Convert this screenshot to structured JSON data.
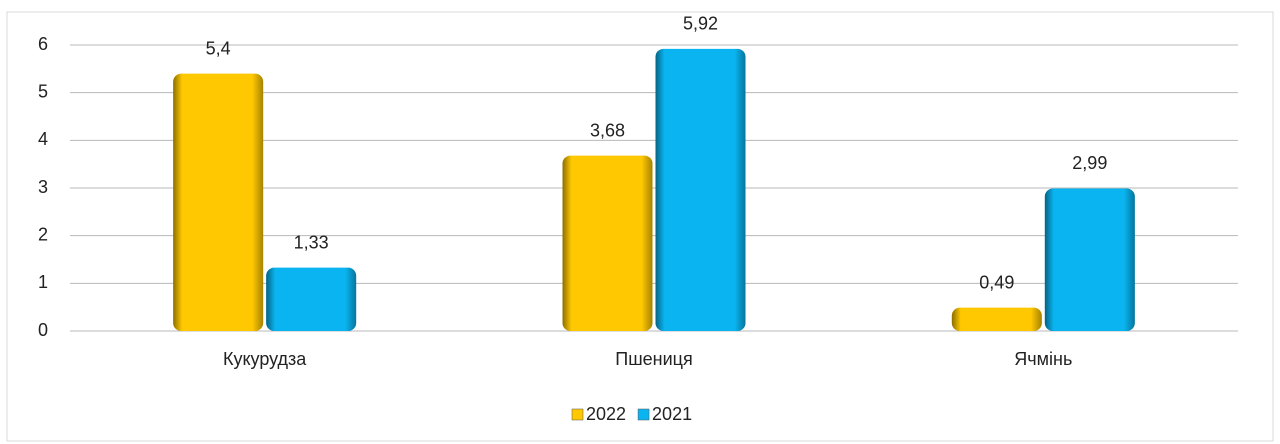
{
  "chart_data": {
    "type": "bar",
    "categories": [
      "Кукурудза",
      "Пшениця",
      "Ячмінь"
    ],
    "series": [
      {
        "name": "2022",
        "color": "#ffc800",
        "values": [
          5.4,
          3.68,
          0.49
        ],
        "value_labels": [
          "5,4",
          "3,68",
          "0,49"
        ]
      },
      {
        "name": "2021",
        "color": "#0ab4f0",
        "values": [
          1.33,
          5.92,
          2.99
        ],
        "value_labels": [
          "1,33",
          "5,92",
          "2,99"
        ]
      }
    ],
    "ylim": [
      0,
      6
    ],
    "yticks": [
      0,
      1,
      2,
      3,
      4,
      5,
      6
    ],
    "grid": true,
    "legend": "bottom"
  }
}
